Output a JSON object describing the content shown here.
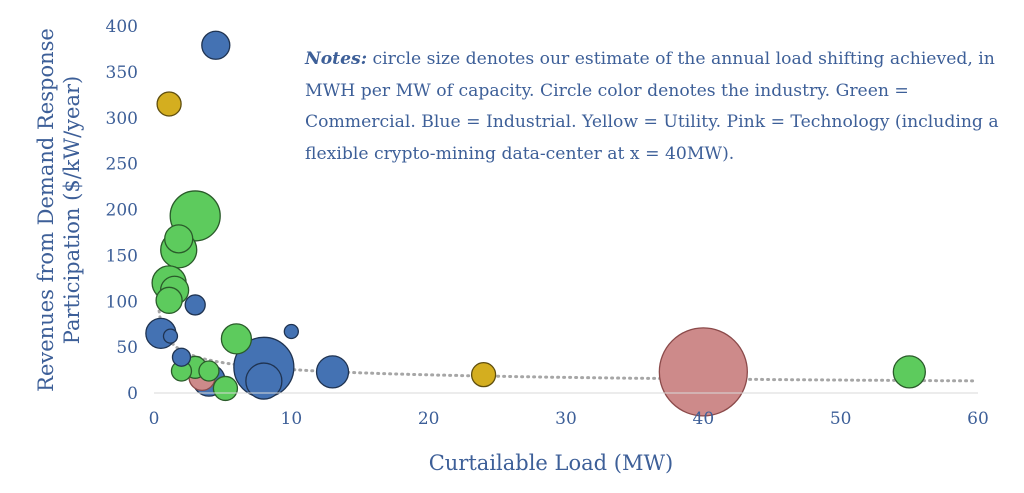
{
  "notes": {
    "label": "Notes:",
    "text": " circle size denotes our estimate of the annual load shifting achieved, in MWH per MW of capacity. Circle color denotes the industry. Green = Commercial. Blue = Industrial. Yellow = Utility. Pink = Technology (including a flexible crypto-mining data-center at x = 40MW)."
  },
  "colors": {
    "Commercial": "#5dcb5d",
    "Industrial": "#4472b3",
    "Utility": "#d4ae1f",
    "Technology": "#cd8a8a",
    "axis_text": "#3d5f98",
    "trendline": "#a6a6a6"
  },
  "chart_data": {
    "type": "scatter",
    "subtype": "bubble",
    "title": "",
    "xlabel": "Curtailable Load (MW)",
    "ylabel": "Revenues from Demand Response Participation ($/kW/year)",
    "xlim": [
      0,
      60
    ],
    "ylim": [
      0,
      400
    ],
    "xticks": [
      "0",
      "10",
      "20",
      "30",
      "40",
      "50",
      "60"
    ],
    "yticks": [
      "0",
      "50",
      "100",
      "150",
      "200",
      "250",
      "300",
      "350",
      "400"
    ],
    "grid": false,
    "trendline": {
      "style": "dotted",
      "type": "power"
    },
    "series": [
      {
        "name": "Commercial",
        "points": [
          {
            "x": 3,
            "y": 193,
            "size": 25
          },
          {
            "x": 1.8,
            "y": 168,
            "size": 14
          },
          {
            "x": 1.8,
            "y": 156,
            "size": 18
          },
          {
            "x": 1.1,
            "y": 120,
            "size": 17
          },
          {
            "x": 1.5,
            "y": 112,
            "size": 14
          },
          {
            "x": 1.1,
            "y": 101,
            "size": 13
          },
          {
            "x": 6,
            "y": 59,
            "size": 15
          },
          {
            "x": 2,
            "y": 24,
            "size": 10
          },
          {
            "x": 3,
            "y": 28,
            "size": 11
          },
          {
            "x": 4,
            "y": 24,
            "size": 10
          },
          {
            "x": 5.2,
            "y": 5,
            "size": 12
          },
          {
            "x": 55,
            "y": 23,
            "size": 16
          }
        ]
      },
      {
        "name": "Industrial",
        "points": [
          {
            "x": 4.5,
            "y": 379,
            "size": 14
          },
          {
            "x": 3,
            "y": 96,
            "size": 10
          },
          {
            "x": 0.5,
            "y": 65,
            "size": 15
          },
          {
            "x": 1.2,
            "y": 62,
            "size": 7
          },
          {
            "x": 10,
            "y": 67,
            "size": 7
          },
          {
            "x": 2,
            "y": 39,
            "size": 9
          },
          {
            "x": 8,
            "y": 28,
            "size": 30
          },
          {
            "x": 13,
            "y": 23,
            "size": 16
          },
          {
            "x": 4,
            "y": 14,
            "size": 16
          },
          {
            "x": 8,
            "y": 13,
            "size": 18
          }
        ]
      },
      {
        "name": "Utility",
        "points": [
          {
            "x": 1.1,
            "y": 315,
            "size": 12
          },
          {
            "x": 24,
            "y": 20,
            "size": 12
          }
        ]
      },
      {
        "name": "Technology",
        "points": [
          {
            "x": 40,
            "y": 23,
            "size": 44
          },
          {
            "x": 3.5,
            "y": 17,
            "size": 13
          }
        ]
      }
    ]
  }
}
